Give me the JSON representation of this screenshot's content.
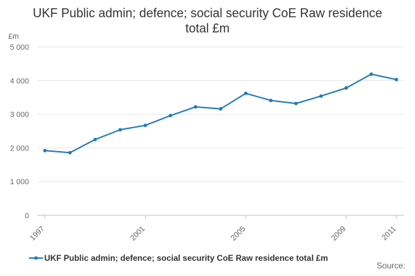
{
  "chart_data": {
    "type": "line",
    "title": "UKF Public admin; defence; social security CoE Raw residence total £m",
    "y_unit": "£m",
    "xlabel": "",
    "ylabel": "",
    "x": [
      1997,
      1998,
      1999,
      2000,
      2001,
      2002,
      2003,
      2004,
      2005,
      2006,
      2007,
      2008,
      2009,
      2010,
      2011
    ],
    "x_tick_labels": [
      "1997",
      "2001",
      "2005",
      "2009",
      "2011"
    ],
    "x_tick_values": [
      1997,
      2001,
      2005,
      2009,
      2011
    ],
    "xlim": [
      1996.7,
      2011.3
    ],
    "y_tick_labels": [
      "0",
      "1 000",
      "2 000",
      "3 000",
      "4 000",
      "5 000"
    ],
    "y_tick_values": [
      0,
      1000,
      2000,
      3000,
      4000,
      5000
    ],
    "ylim": [
      0,
      5000
    ],
    "grid": true,
    "legend_position": "bottom",
    "series": [
      {
        "name": "UKF Public admin; defence; social security CoE Raw residence total £m",
        "color": "#1f7ab8",
        "values": [
          1920,
          1860,
          2250,
          2540,
          2670,
          2960,
          3220,
          3160,
          3620,
          3410,
          3320,
          3540,
          3780,
          4190,
          4030
        ]
      }
    ]
  },
  "footer": {
    "source": "Source:"
  }
}
